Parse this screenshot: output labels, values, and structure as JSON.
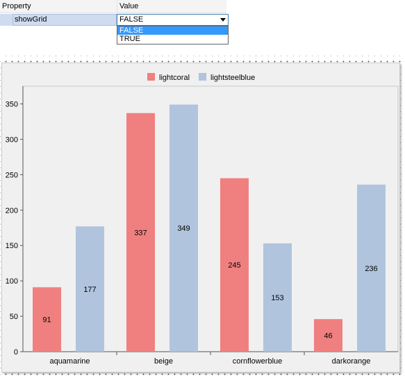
{
  "property_grid": {
    "header_property": "Property",
    "header_value": "Value",
    "row_name": "showGrid",
    "current_value": "FALSE",
    "options": [
      {
        "label": "FALSE",
        "selected": true
      },
      {
        "label": "TRUE",
        "selected": false
      }
    ]
  },
  "chart_data": {
    "type": "bar",
    "title": "",
    "xlabel": "",
    "ylabel": "",
    "categories": [
      "aquamarine",
      "beige",
      "cornflowerblue",
      "darkorange"
    ],
    "series": [
      {
        "name": "lightcoral",
        "color": "#f08080",
        "values": [
          91,
          337,
          245,
          46
        ]
      },
      {
        "name": "lightsteelblue",
        "color": "#b0c4de",
        "values": [
          177,
          349,
          153,
          236
        ]
      }
    ],
    "ylim": [
      0,
      375
    ],
    "yticks": [
      0,
      50,
      100,
      150,
      200,
      250,
      300,
      350
    ],
    "grid": false,
    "legend_position": "top-center",
    "data_labels": true
  }
}
